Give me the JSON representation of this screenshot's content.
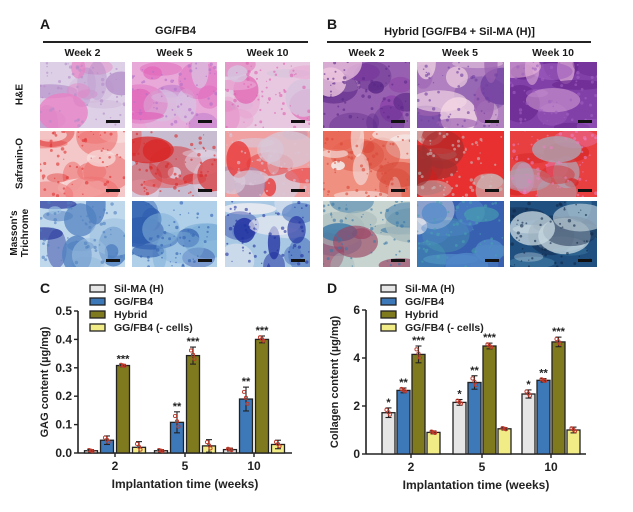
{
  "panels": {
    "A": {
      "letter": "A",
      "title": "GG/FB4"
    },
    "B": {
      "letter": "B",
      "title": "Hybrid [GG/FB4 + Sil-MA (H)]"
    },
    "C": {
      "letter": "C"
    },
    "D": {
      "letter": "D"
    }
  },
  "weeks": [
    "Week 2",
    "Week 5",
    "Week 10"
  ],
  "stains": [
    {
      "label": "H&E",
      "label2": ""
    },
    {
      "label": "Safranin-O",
      "label2": ""
    },
    {
      "label": "Masson's",
      "label2": "Trichrome"
    }
  ],
  "colors": {
    "sil_ma": "#e6e6e6",
    "gg_fb4": "#3d78b8",
    "hybrid": "#7f7a1e",
    "gg_fb4_nocells": "#f2ec86",
    "error": "#c0392b"
  },
  "chart_data": [
    {
      "type": "bar",
      "panel": "C",
      "xlabel": "Implantation time (weeks)",
      "ylabel": "GAG content (µg/mg)",
      "categories": [
        "2",
        "5",
        "10"
      ],
      "ylim": [
        0,
        0.5
      ],
      "yticks": [
        "0.0",
        "0.1",
        "0.2",
        "0.3",
        "0.4",
        "0.5"
      ],
      "ytick_values": [
        0,
        0.1,
        0.2,
        0.3,
        0.4,
        0.5
      ],
      "legend_position": "top-left",
      "series": [
        {
          "name": "Sil-MA (H)",
          "values": [
            0.008,
            0.008,
            0.012
          ],
          "errors": [
            0.004,
            0.004,
            0.005
          ],
          "sig": [
            "",
            "",
            ""
          ]
        },
        {
          "name": "GG/FB4",
          "values": [
            0.045,
            0.108,
            0.19
          ],
          "errors": [
            0.015,
            0.037,
            0.042
          ],
          "sig": [
            "",
            "**",
            "**"
          ]
        },
        {
          "name": "Hybrid",
          "values": [
            0.308,
            0.343,
            0.4
          ],
          "errors": [
            0.004,
            0.03,
            0.012
          ],
          "sig": [
            "***",
            "***",
            "***"
          ]
        },
        {
          "name": "GG/FB4 (- cells)",
          "values": [
            0.02,
            0.025,
            0.03
          ],
          "errors": [
            0.02,
            0.022,
            0.015
          ],
          "sig": [
            "",
            "",
            ""
          ]
        }
      ]
    },
    {
      "type": "bar",
      "panel": "D",
      "xlabel": "Implantation time (weeks)",
      "ylabel": "Collagen content (µg/mg)",
      "categories": [
        "2",
        "5",
        "10"
      ],
      "ylim": [
        0,
        6
      ],
      "yticks": [
        "0",
        "2",
        "4",
        "6"
      ],
      "ytick_values": [
        0,
        2,
        4,
        6
      ],
      "legend_position": "top-left",
      "series": [
        {
          "name": "Sil-MA (H)",
          "values": [
            1.72,
            2.15,
            2.5
          ],
          "errors": [
            0.2,
            0.12,
            0.17
          ],
          "sig": [
            "*",
            "*",
            "*"
          ]
        },
        {
          "name": "GG/FB4",
          "values": [
            2.65,
            2.98,
            3.07
          ],
          "errors": [
            0.1,
            0.28,
            0.07
          ],
          "sig": [
            "**",
            "**",
            "**"
          ]
        },
        {
          "name": "Hybrid",
          "values": [
            4.15,
            4.5,
            4.67
          ],
          "errors": [
            0.35,
            0.12,
            0.2
          ],
          "sig": [
            "***",
            "***",
            "***"
          ]
        },
        {
          "name": "GG/FB4 (- cells)",
          "values": [
            0.9,
            1.05,
            1.0
          ],
          "errors": [
            0.06,
            0.05,
            0.12
          ],
          "sig": [
            "",
            "",
            ""
          ]
        }
      ]
    }
  ]
}
